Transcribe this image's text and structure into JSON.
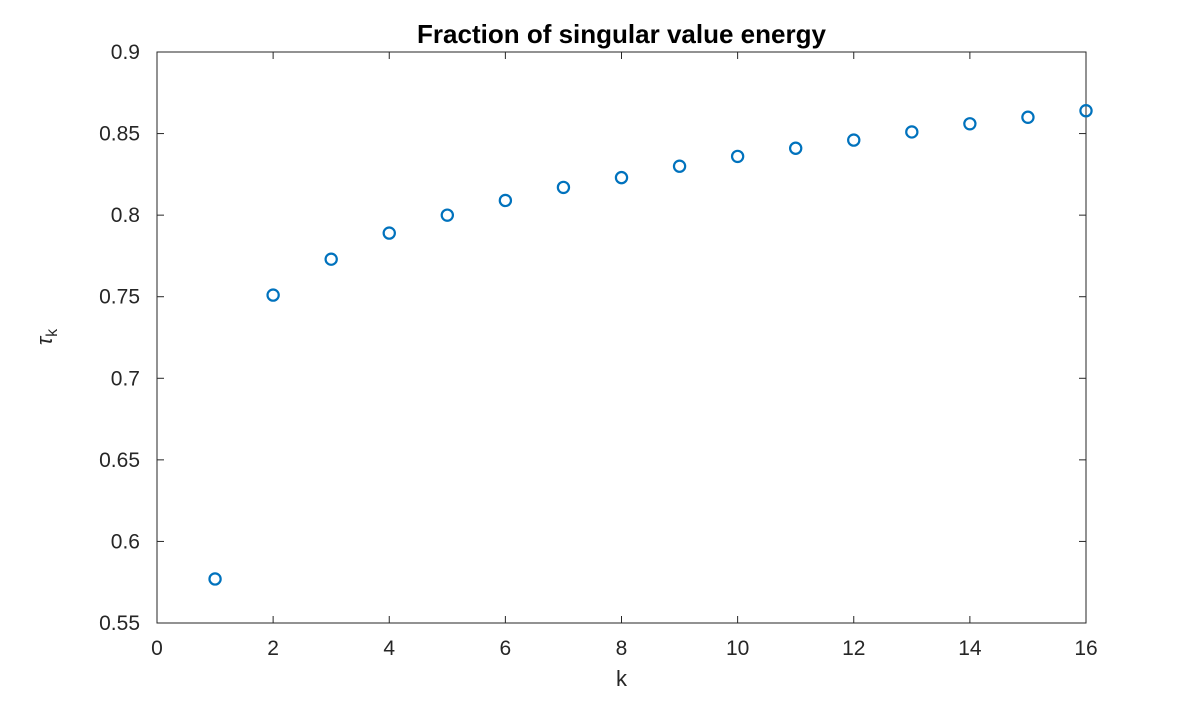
{
  "figure": {
    "background": "#ffffff"
  },
  "chart_data": {
    "type": "scatter",
    "title": "Fraction of singular value energy",
    "xlabel": "k",
    "ylabel": "tau_k",
    "ylabel_symbol": "τ",
    "ylabel_subscript": "k",
    "x": [
      1,
      2,
      3,
      4,
      5,
      6,
      7,
      8,
      9,
      10,
      11,
      12,
      13,
      14,
      15,
      16
    ],
    "y": [
      0.577,
      0.751,
      0.773,
      0.789,
      0.8,
      0.809,
      0.817,
      0.823,
      0.83,
      0.836,
      0.841,
      0.846,
      0.851,
      0.856,
      0.86,
      0.864
    ],
    "xlim": [
      0,
      16
    ],
    "ylim": [
      0.55,
      0.9
    ],
    "xticks": [
      0,
      2,
      4,
      6,
      8,
      10,
      12,
      14,
      16
    ],
    "xtick_labels": [
      "0",
      "2",
      "4",
      "6",
      "8",
      "10",
      "12",
      "14",
      "16"
    ],
    "yticks": [
      0.55,
      0.6,
      0.65,
      0.7,
      0.75,
      0.8,
      0.85,
      0.9
    ],
    "ytick_labels": [
      "0.55",
      "0.6",
      "0.65",
      "0.7",
      "0.75",
      "0.8",
      "0.85",
      "0.9"
    ],
    "grid": false,
    "legend": null,
    "box": true,
    "tick_direction": "in",
    "marker": {
      "shape": "open-circle",
      "color": "#0072BD",
      "radius": 5.6,
      "stroke_width": 2.2
    },
    "axis_color": "#262626",
    "title_color": "#000000"
  }
}
